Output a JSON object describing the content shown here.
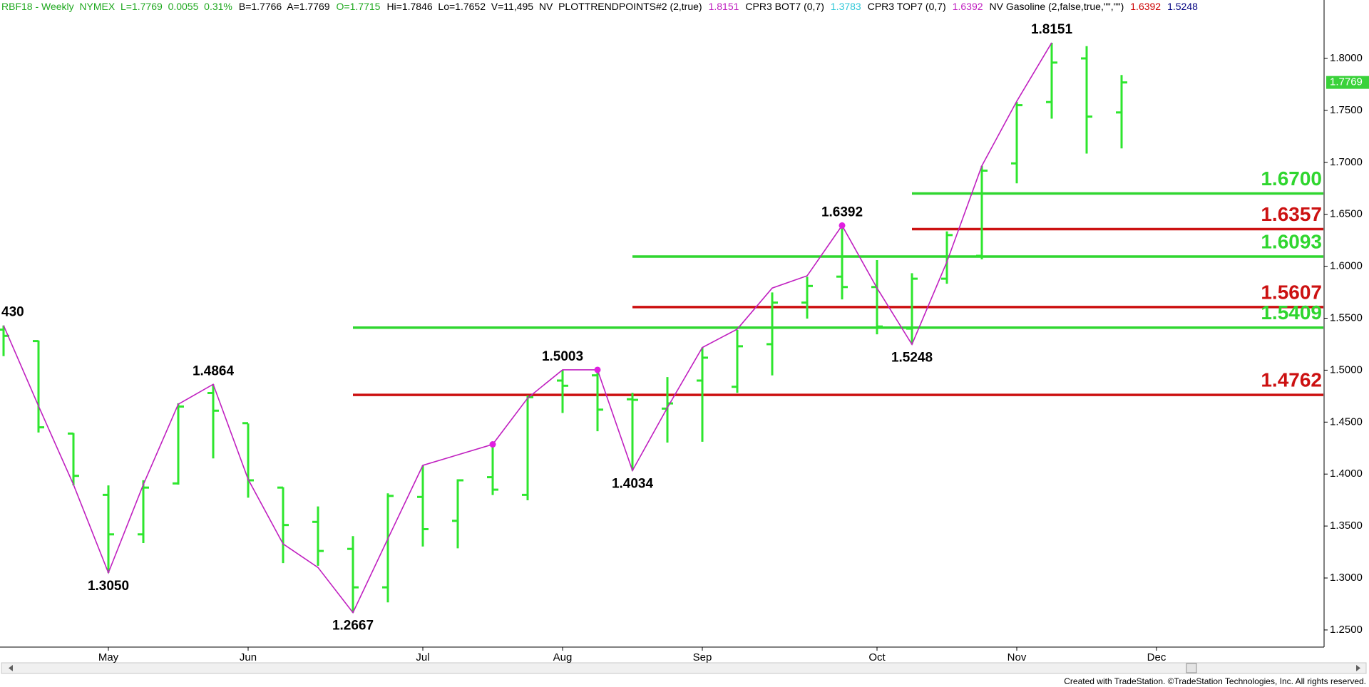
{
  "chart_data": {
    "type": "ohlc",
    "header": [
      {
        "text": "RBF18 - Weekly  NYMEX  L=1.7769  0.0055  0.31%",
        "color": "#1fa81f"
      },
      {
        "text": "B=1.7766  A=1.7769",
        "color": "#000000"
      },
      {
        "text": "O=1.7715",
        "color": "#1fa81f"
      },
      {
        "text": "Hi=1.7846  Lo=1.7652  V=11,495  NV  PLOTTRENDPOINTS#2 (2,true)",
        "color": "#000000"
      },
      {
        "text": "1.8151",
        "color": "#c020c0"
      },
      {
        "text": "CPR3 BOT7 (0,7)",
        "color": "#000000"
      },
      {
        "text": "1.3783",
        "color": "#30c8d8"
      },
      {
        "text": "CPR3 TOP7 (0,7)",
        "color": "#000000"
      },
      {
        "text": "1.6392",
        "color": "#c020c0"
      },
      {
        "text": "NV Gasoline (2,false,true,\"\",\"\")",
        "color": "#000000"
      },
      {
        "text": "1.6392",
        "color": "#cc0000"
      },
      {
        "text": "1.5248",
        "color": "#000080"
      }
    ],
    "categories": [
      null,
      null,
      null,
      "May",
      null,
      null,
      null,
      "Jun",
      null,
      null,
      null,
      null,
      "Jul",
      null,
      null,
      null,
      "Aug",
      null,
      null,
      null,
      "Sep",
      null,
      null,
      null,
      null,
      "Oct",
      null,
      null,
      null,
      "Nov",
      null,
      null,
      null,
      "Dec",
      null,
      null,
      null,
      null
    ],
    "open": [
      1.539,
      1.528,
      1.439,
      1.38,
      1.342,
      1.391,
      1.478,
      1.449,
      1.387,
      1.354,
      1.328,
      1.291,
      1.378,
      1.355,
      1.397,
      1.38,
      1.49,
      1.495,
      1.472,
      1.463,
      1.49,
      1.484,
      1.525,
      1.565,
      1.59,
      1.58,
      1.54,
      1.588,
      1.61,
      1.699,
      1.758,
      1.8,
      1.748,
      null,
      null,
      null,
      null,
      null
    ],
    "high": [
      1.543,
      1.5285,
      1.4395,
      1.3891,
      1.3941,
      1.4681,
      1.4864,
      1.4487,
      1.3874,
      1.3689,
      1.3403,
      1.3815,
      1.4084,
      1.395,
      1.4294,
      1.4756,
      1.5003,
      1.5003,
      1.4782,
      1.4933,
      1.5218,
      1.5387,
      1.5748,
      1.5899,
      1.6392,
      1.6059,
      1.5933,
      1.6336,
      1.6966,
      1.758,
      1.8151,
      1.8118,
      1.784,
      null,
      null,
      null,
      null,
      null
    ],
    "low": [
      1.5135,
      1.44,
      1.3891,
      1.305,
      1.3336,
      1.3899,
      1.4151,
      1.3773,
      1.3143,
      1.3118,
      1.2667,
      1.2765,
      1.3303,
      1.3286,
      1.3798,
      1.3748,
      1.4588,
      1.4412,
      1.4034,
      1.4303,
      1.4311,
      1.4782,
      1.495,
      1.5496,
      1.5681,
      1.5345,
      1.5248,
      1.5832,
      1.6067,
      1.6798,
      1.742,
      1.7084,
      1.7134,
      null,
      null,
      null,
      null,
      null
    ],
    "close": [
      1.533,
      1.445,
      1.3983,
      1.342,
      1.387,
      1.465,
      1.461,
      1.394,
      1.351,
      1.326,
      1.291,
      1.379,
      1.347,
      1.394,
      1.385,
      1.474,
      1.485,
      1.462,
      1.4714,
      1.468,
      1.512,
      1.523,
      1.565,
      1.581,
      1.58,
      1.542,
      1.588,
      1.63,
      1.692,
      1.755,
      1.796,
      1.744,
      1.7769,
      null,
      null,
      null,
      null,
      null
    ],
    "bar_color": "#2ee62e",
    "trend_line": {
      "color": "#c020c0",
      "values": [
        1.543,
        1.4655,
        1.3899,
        1.305,
        1.3899,
        1.4672,
        1.4864,
        1.395,
        1.3328,
        1.3101,
        1.2667,
        1.3378,
        1.4084,
        1.4185,
        1.4286,
        1.4731,
        1.5003,
        1.5003,
        1.4034,
        1.4639,
        1.5218,
        1.5395,
        1.579,
        1.5908,
        1.6392,
        1.579,
        1.5248,
        1.6042,
        1.6966,
        1.7588,
        1.8151,
        null,
        null,
        null,
        null,
        null,
        null,
        null
      ]
    },
    "pivot_points": {
      "color": "#e020e0",
      "values": [
        null,
        null,
        null,
        null,
        null,
        null,
        null,
        null,
        null,
        null,
        null,
        null,
        null,
        null,
        1.4286,
        null,
        null,
        1.5003,
        null,
        null,
        null,
        null,
        null,
        null,
        1.6392,
        null,
        null,
        null,
        null,
        null,
        null,
        null,
        null,
        null,
        null,
        null,
        null,
        null
      ]
    },
    "annotations": [
      {
        "x": 0,
        "label": "430"
      },
      {
        "x": 3,
        "label": "1.3050"
      },
      {
        "x": 6,
        "label": "1.4864"
      },
      {
        "x": 10,
        "label": "1.2667"
      },
      {
        "x": 16,
        "label": "1.5003"
      },
      {
        "x": 18,
        "label": "1.4034"
      },
      {
        "x": 24,
        "label": "1.6392"
      },
      {
        "x": 26,
        "label": "1.5248"
      },
      {
        "x": 30,
        "label": "1.8151"
      }
    ],
    "levels": [
      {
        "value": 1.67,
        "label": "1.6700",
        "color": "#2fd62f",
        "from": 26
      },
      {
        "value": 1.6357,
        "label": "1.6357",
        "color": "#cc1111",
        "from": 26
      },
      {
        "value": 1.6093,
        "label": "1.6093",
        "color": "#2fd62f",
        "from": 18
      },
      {
        "value": 1.5607,
        "label": "1.5607",
        "color": "#cc1111",
        "from": 18
      },
      {
        "value": 1.5409,
        "label": "1.5409",
        "color": "#2fd62f",
        "from": 10
      },
      {
        "value": 1.4762,
        "label": "1.4762",
        "color": "#cc1111",
        "from": 10
      }
    ],
    "ylim": [
      1.2335,
      1.8425
    ],
    "yticks": [
      {
        "value": 1.25,
        "label": "1.2500"
      },
      {
        "value": 1.3,
        "label": "1.3000"
      },
      {
        "value": 1.35,
        "label": "1.3500"
      },
      {
        "value": 1.4,
        "label": "1.4000"
      },
      {
        "value": 1.45,
        "label": "1.4500"
      },
      {
        "value": 1.5,
        "label": "1.5000"
      },
      {
        "value": 1.55,
        "label": "1.5500"
      },
      {
        "value": 1.6,
        "label": "1.6000"
      },
      {
        "value": 1.65,
        "label": "1.6500"
      },
      {
        "value": 1.7,
        "label": "1.7000"
      },
      {
        "value": 1.75,
        "label": "1.7500"
      },
      {
        "value": 1.8,
        "label": "1.8000"
      }
    ],
    "last_price": 1.7769,
    "last_price_color": "#3ad23a",
    "footer": "Created with TradeStation. ©TradeStation Technologies, Inc. All rights reserved."
  }
}
